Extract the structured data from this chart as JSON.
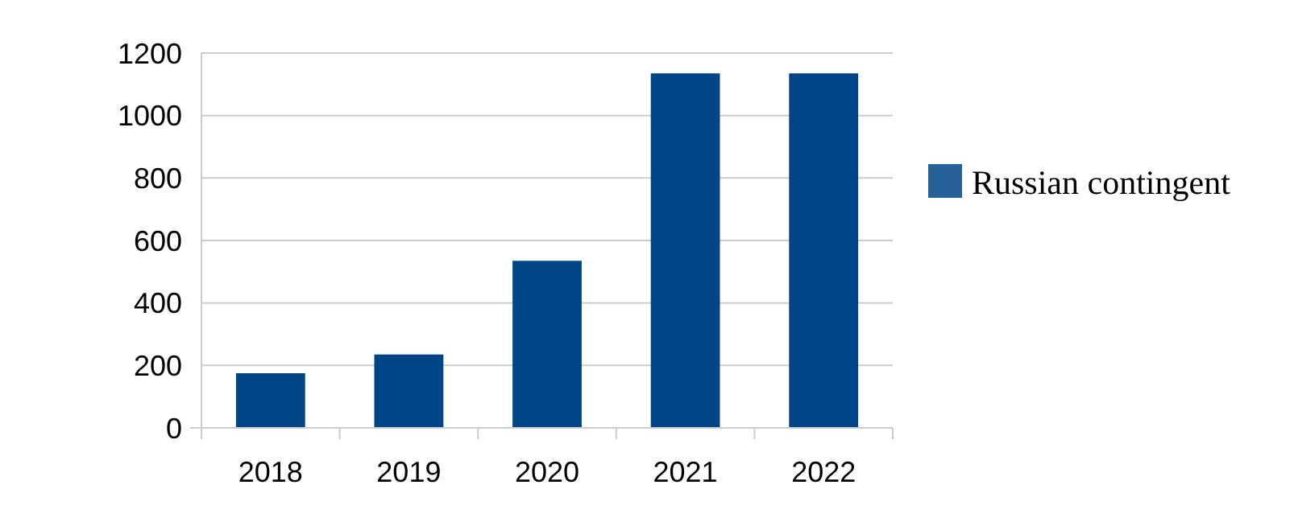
{
  "chart_data": {
    "type": "bar",
    "categories": [
      "2018",
      "2019",
      "2020",
      "2021",
      "2022"
    ],
    "series": [
      {
        "name": "Russian contingent",
        "color": "#004586",
        "values": [
          175,
          235,
          535,
          1135,
          1135
        ]
      }
    ],
    "ylim": [
      0,
      1200
    ],
    "yticks": [
      0,
      200,
      400,
      600,
      800,
      1000,
      1200
    ],
    "grid": "y",
    "legend": "right"
  }
}
